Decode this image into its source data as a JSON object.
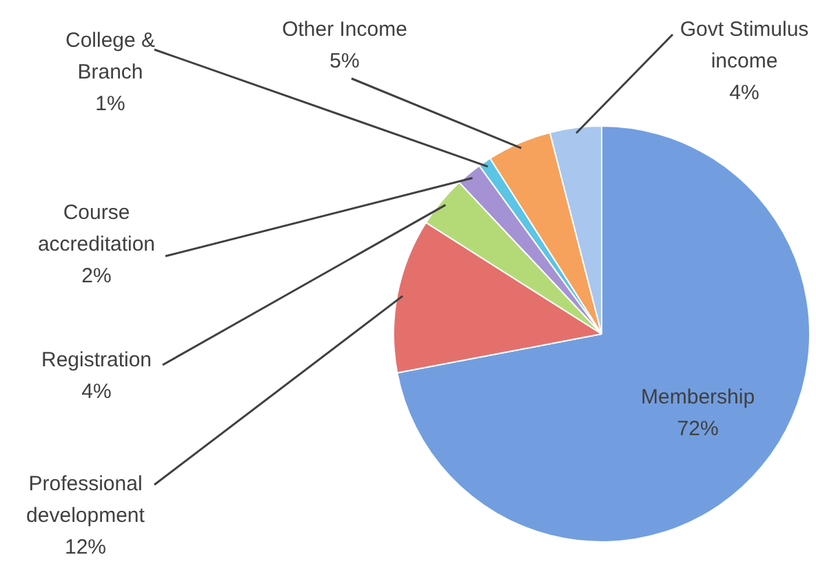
{
  "chart_data": {
    "type": "pie",
    "categories": [
      "Membership",
      "Professional development",
      "Registration",
      "Course accreditation",
      "College & Branch",
      "Other Income",
      "Govt Stimulus income"
    ],
    "values": [
      72,
      12,
      4,
      2,
      1,
      5,
      4
    ],
    "value_labels": [
      "72%",
      "12%",
      "4%",
      "2%",
      "1%",
      "5%",
      "4%"
    ],
    "colors": [
      "#729ee0",
      "#e4706c",
      "#b4da78",
      "#a592d4",
      "#5cc4e4",
      "#f6a25c",
      "#a8c6ee"
    ],
    "legend": false
  }
}
